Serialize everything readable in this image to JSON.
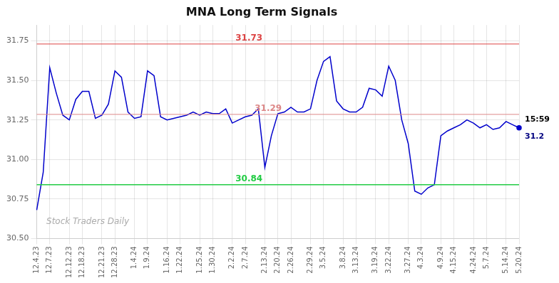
{
  "chart_data": {
    "type": "line",
    "title": "MNA Long Term Signals",
    "categories": [
      "12.4.23",
      null,
      "12.7.23",
      null,
      null,
      "12.12.23",
      null,
      "12.18.23",
      null,
      null,
      "12.21.23",
      null,
      "12.28.23",
      null,
      null,
      "1.4.24",
      null,
      "1.9.24",
      null,
      null,
      "1.16.24",
      null,
      "1.22.24",
      null,
      null,
      "1.25.24",
      null,
      "1.30.24",
      null,
      null,
      "2.2.24",
      null,
      "2.7.24",
      null,
      null,
      "2.13.24",
      null,
      "2.20.24",
      null,
      "2.26.24",
      null,
      null,
      "2.29.24",
      null,
      "3.5.24",
      null,
      null,
      "3.8.24",
      null,
      "3.13.24",
      null,
      null,
      "3.19.24",
      null,
      "3.22.24",
      null,
      null,
      "3.27.24",
      null,
      "4.3.24",
      null,
      null,
      "4.9.24",
      null,
      "4.15.24",
      null,
      null,
      "4.24.24",
      null,
      "5.7.24",
      null,
      null,
      "5.14.24",
      null,
      "5.20.24"
    ],
    "values": [
      30.68,
      30.92,
      31.58,
      31.42,
      31.28,
      31.25,
      31.38,
      31.43,
      31.43,
      31.26,
      31.28,
      31.35,
      31.56,
      31.52,
      31.3,
      31.26,
      31.27,
      31.56,
      31.53,
      31.27,
      31.25,
      31.26,
      31.27,
      31.28,
      31.3,
      31.28,
      31.3,
      31.29,
      31.29,
      31.32,
      31.23,
      31.25,
      31.27,
      31.28,
      31.32,
      30.95,
      31.15,
      31.29,
      31.3,
      31.33,
      31.3,
      31.3,
      31.32,
      31.5,
      31.62,
      31.65,
      31.37,
      31.32,
      31.3,
      31.3,
      31.33,
      31.45,
      31.44,
      31.4,
      31.59,
      31.5,
      31.25,
      31.1,
      30.8,
      30.78,
      30.82,
      30.84,
      31.15,
      31.18,
      31.2,
      31.22,
      31.25,
      31.23,
      31.2,
      31.22,
      31.19,
      31.2,
      31.24,
      31.22,
      31.2
    ],
    "color": "#0000cc",
    "ylim": [
      30.5,
      31.85
    ],
    "yticks": [
      {
        "value": 30.5,
        "label": "30.50"
      },
      {
        "value": 30.75,
        "label": "30.75"
      },
      {
        "value": 31.0,
        "label": "31.00"
      },
      {
        "value": 31.25,
        "label": "31.25"
      },
      {
        "value": 31.5,
        "label": "31.50"
      },
      {
        "value": 31.75,
        "label": "31.75"
      }
    ],
    "hlines": [
      {
        "value": 31.73,
        "label": "31.73",
        "color": "#dd4444"
      },
      {
        "value": 31.285,
        "label": "31.29",
        "color": "#dd8888"
      },
      {
        "value": 30.84,
        "label": "30.84",
        "color": "#22cc44"
      }
    ],
    "annotations": [
      "15:59",
      "31.2",
      "Stock Traders Daily"
    ],
    "grid": true
  }
}
